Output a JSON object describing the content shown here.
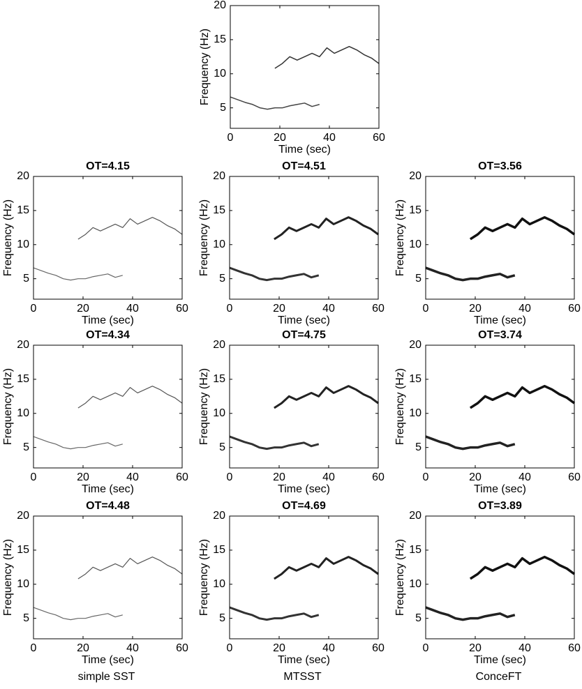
{
  "chart_data": [
    {
      "type": "line",
      "xlim": [
        0,
        60
      ],
      "ylim": [
        2,
        20
      ],
      "xticks": [
        0,
        20,
        40,
        60
      ],
      "yticks": [
        5,
        10,
        15,
        20
      ],
      "xlabel": "Time (sec)",
      "ylabel": "Frequency (Hz)",
      "series": [
        {
          "color": "#444444",
          "x": [
            0,
            3,
            6,
            9,
            12,
            15,
            18,
            21,
            24,
            27,
            30,
            33,
            36
          ],
          "values": [
            6.6,
            6.2,
            5.8,
            5.5,
            5.0,
            4.8,
            5.0,
            5.0,
            5.3,
            5.5,
            5.7,
            5.2,
            5.5
          ]
        },
        {
          "color": "#333333",
          "x": [
            18,
            21,
            24,
            27,
            30,
            33,
            36,
            39,
            42,
            45,
            48,
            51,
            54,
            57,
            60
          ],
          "values": [
            10.8,
            11.5,
            12.5,
            12.0,
            12.5,
            13.0,
            12.5,
            13.8,
            13.0,
            13.5,
            14.0,
            13.5,
            12.8,
            12.3,
            11.5
          ]
        }
      ]
    },
    {
      "type": "line",
      "title": "OT=4.15",
      "xlim": [
        0,
        60
      ],
      "ylim": [
        2,
        20
      ],
      "xticks": [
        0,
        20,
        40,
        60
      ],
      "yticks": [
        5,
        10,
        15,
        20
      ],
      "xlabel": "Time (sec)",
      "ylabel": "Frequency (Hz)",
      "series": [
        {
          "color": "#666666",
          "x": [
            0,
            3,
            6,
            9,
            12,
            15,
            18,
            21,
            24,
            27,
            30,
            33,
            36
          ],
          "values": [
            6.6,
            6.2,
            5.8,
            5.5,
            5.0,
            4.8,
            5.0,
            5.0,
            5.3,
            5.5,
            5.7,
            5.2,
            5.5
          ]
        },
        {
          "color": "#555555",
          "x": [
            18,
            21,
            24,
            27,
            30,
            33,
            36,
            39,
            42,
            45,
            48,
            51,
            54,
            57,
            60
          ],
          "values": [
            10.8,
            11.5,
            12.5,
            12.0,
            12.5,
            13.0,
            12.5,
            13.8,
            13.0,
            13.5,
            14.0,
            13.5,
            12.8,
            12.3,
            11.5
          ]
        }
      ]
    },
    {
      "type": "line",
      "title": "OT=4.51",
      "xlim": [
        0,
        60
      ],
      "ylim": [
        2,
        20
      ],
      "xticks": [
        0,
        20,
        40,
        60
      ],
      "yticks": [
        5,
        10,
        15,
        20
      ],
      "xlabel": "Time (sec)",
      "ylabel": "Frequency (Hz)",
      "series": [
        {
          "color": "#333333",
          "x": [
            0,
            3,
            6,
            9,
            12,
            15,
            18,
            21,
            24,
            27,
            30,
            33,
            36
          ],
          "values": [
            6.6,
            6.2,
            5.8,
            5.5,
            5.0,
            4.8,
            5.0,
            5.0,
            5.3,
            5.5,
            5.7,
            5.2,
            5.5
          ]
        },
        {
          "color": "#222222",
          "x": [
            18,
            21,
            24,
            27,
            30,
            33,
            36,
            39,
            42,
            45,
            48,
            51,
            54,
            57,
            60
          ],
          "values": [
            10.8,
            11.5,
            12.5,
            12.0,
            12.5,
            13.0,
            12.5,
            13.8,
            13.0,
            13.5,
            14.0,
            13.5,
            12.8,
            12.3,
            11.5
          ]
        }
      ]
    },
    {
      "type": "line",
      "title": "OT=3.56",
      "xlim": [
        0,
        60
      ],
      "ylim": [
        2,
        20
      ],
      "xticks": [
        0,
        20,
        40,
        60
      ],
      "yticks": [
        5,
        10,
        15,
        20
      ],
      "xlabel": "Time (sec)",
      "ylabel": "Frequency (Hz)",
      "series": [
        {
          "color": "#222222",
          "x": [
            0,
            3,
            6,
            9,
            12,
            15,
            18,
            21,
            24,
            27,
            30,
            33,
            36
          ],
          "values": [
            6.6,
            6.2,
            5.8,
            5.5,
            5.0,
            4.8,
            5.0,
            5.0,
            5.3,
            5.5,
            5.7,
            5.2,
            5.5
          ]
        },
        {
          "color": "#111111",
          "x": [
            18,
            21,
            24,
            27,
            30,
            33,
            36,
            39,
            42,
            45,
            48,
            51,
            54,
            57,
            60
          ],
          "values": [
            10.8,
            11.5,
            12.5,
            12.0,
            12.5,
            13.0,
            12.5,
            13.8,
            13.0,
            13.5,
            14.0,
            13.5,
            12.8,
            12.3,
            11.5
          ]
        }
      ]
    },
    {
      "type": "line",
      "title": "OT=4.34",
      "xlim": [
        0,
        60
      ],
      "ylim": [
        2,
        20
      ],
      "xticks": [
        0,
        20,
        40,
        60
      ],
      "yticks": [
        5,
        10,
        15,
        20
      ],
      "xlabel": "Time (sec)",
      "ylabel": "Frequency (Hz)",
      "series": [
        {
          "color": "#666666",
          "x": [
            0,
            3,
            6,
            9,
            12,
            15,
            18,
            21,
            24,
            27,
            30,
            33,
            36
          ],
          "values": [
            6.6,
            6.2,
            5.8,
            5.5,
            5.0,
            4.8,
            5.0,
            5.0,
            5.3,
            5.5,
            5.7,
            5.2,
            5.5
          ]
        },
        {
          "color": "#555555",
          "x": [
            18,
            21,
            24,
            27,
            30,
            33,
            36,
            39,
            42,
            45,
            48,
            51,
            54,
            57,
            60
          ],
          "values": [
            10.8,
            11.5,
            12.5,
            12.0,
            12.5,
            13.0,
            12.5,
            13.8,
            13.0,
            13.5,
            14.0,
            13.5,
            12.8,
            12.3,
            11.5
          ]
        }
      ]
    },
    {
      "type": "line",
      "title": "OT=4.75",
      "xlim": [
        0,
        60
      ],
      "ylim": [
        2,
        20
      ],
      "xticks": [
        0,
        20,
        40,
        60
      ],
      "yticks": [
        5,
        10,
        15,
        20
      ],
      "xlabel": "Time (sec)",
      "ylabel": "Frequency (Hz)",
      "series": [
        {
          "color": "#333333",
          "x": [
            0,
            3,
            6,
            9,
            12,
            15,
            18,
            21,
            24,
            27,
            30,
            33,
            36
          ],
          "values": [
            6.6,
            6.2,
            5.8,
            5.5,
            5.0,
            4.8,
            5.0,
            5.0,
            5.3,
            5.5,
            5.7,
            5.2,
            5.5
          ]
        },
        {
          "color": "#222222",
          "x": [
            18,
            21,
            24,
            27,
            30,
            33,
            36,
            39,
            42,
            45,
            48,
            51,
            54,
            57,
            60
          ],
          "values": [
            10.8,
            11.5,
            12.5,
            12.0,
            12.5,
            13.0,
            12.5,
            13.8,
            13.0,
            13.5,
            14.0,
            13.5,
            12.8,
            12.3,
            11.5
          ]
        }
      ]
    },
    {
      "type": "line",
      "title": "OT=3.74",
      "xlim": [
        0,
        60
      ],
      "ylim": [
        2,
        20
      ],
      "xticks": [
        0,
        20,
        40,
        60
      ],
      "yticks": [
        5,
        10,
        15,
        20
      ],
      "xlabel": "Time (sec)",
      "ylabel": "Frequency (Hz)",
      "series": [
        {
          "color": "#222222",
          "x": [
            0,
            3,
            6,
            9,
            12,
            15,
            18,
            21,
            24,
            27,
            30,
            33,
            36
          ],
          "values": [
            6.6,
            6.2,
            5.8,
            5.5,
            5.0,
            4.8,
            5.0,
            5.0,
            5.3,
            5.5,
            5.7,
            5.2,
            5.5
          ]
        },
        {
          "color": "#111111",
          "x": [
            18,
            21,
            24,
            27,
            30,
            33,
            36,
            39,
            42,
            45,
            48,
            51,
            54,
            57,
            60
          ],
          "values": [
            10.8,
            11.5,
            12.5,
            12.0,
            12.5,
            13.0,
            12.5,
            13.8,
            13.0,
            13.5,
            14.0,
            13.5,
            12.8,
            12.3,
            11.5
          ]
        }
      ]
    },
    {
      "type": "line",
      "title": "OT=4.48",
      "xlim": [
        0,
        60
      ],
      "ylim": [
        2,
        20
      ],
      "xticks": [
        0,
        20,
        40,
        60
      ],
      "yticks": [
        5,
        10,
        15,
        20
      ],
      "xlabel": "Time (sec)",
      "ylabel": "Frequency (Hz)",
      "series": [
        {
          "color": "#666666",
          "x": [
            0,
            3,
            6,
            9,
            12,
            15,
            18,
            21,
            24,
            27,
            30,
            33,
            36
          ],
          "values": [
            6.6,
            6.2,
            5.8,
            5.5,
            5.0,
            4.8,
            5.0,
            5.0,
            5.3,
            5.5,
            5.7,
            5.2,
            5.5
          ]
        },
        {
          "color": "#555555",
          "x": [
            18,
            21,
            24,
            27,
            30,
            33,
            36,
            39,
            42,
            45,
            48,
            51,
            54,
            57,
            60
          ],
          "values": [
            10.8,
            11.5,
            12.5,
            12.0,
            12.5,
            13.0,
            12.5,
            13.8,
            13.0,
            13.5,
            14.0,
            13.5,
            12.8,
            12.3,
            11.5
          ]
        }
      ]
    },
    {
      "type": "line",
      "title": "OT=4.69",
      "xlim": [
        0,
        60
      ],
      "ylim": [
        2,
        20
      ],
      "xticks": [
        0,
        20,
        40,
        60
      ],
      "yticks": [
        5,
        10,
        15,
        20
      ],
      "xlabel": "Time (sec)",
      "ylabel": "Frequency (Hz)",
      "series": [
        {
          "color": "#333333",
          "x": [
            0,
            3,
            6,
            9,
            12,
            15,
            18,
            21,
            24,
            27,
            30,
            33,
            36
          ],
          "values": [
            6.6,
            6.2,
            5.8,
            5.5,
            5.0,
            4.8,
            5.0,
            5.0,
            5.3,
            5.5,
            5.7,
            5.2,
            5.5
          ]
        },
        {
          "color": "#222222",
          "x": [
            18,
            21,
            24,
            27,
            30,
            33,
            36,
            39,
            42,
            45,
            48,
            51,
            54,
            57,
            60
          ],
          "values": [
            10.8,
            11.5,
            12.5,
            12.0,
            12.5,
            13.0,
            12.5,
            13.8,
            13.0,
            13.5,
            14.0,
            13.5,
            12.8,
            12.3,
            11.5
          ]
        }
      ]
    },
    {
      "type": "line",
      "title": "OT=3.89",
      "xlim": [
        0,
        60
      ],
      "ylim": [
        2,
        20
      ],
      "xticks": [
        0,
        20,
        40,
        60
      ],
      "yticks": [
        5,
        10,
        15,
        20
      ],
      "xlabel": "Time (sec)",
      "ylabel": "Frequency (Hz)",
      "series": [
        {
          "color": "#222222",
          "x": [
            0,
            3,
            6,
            9,
            12,
            15,
            18,
            21,
            24,
            27,
            30,
            33,
            36
          ],
          "values": [
            6.6,
            6.2,
            5.8,
            5.5,
            5.0,
            4.8,
            5.0,
            5.0,
            5.3,
            5.5,
            5.7,
            5.2,
            5.5
          ]
        },
        {
          "color": "#111111",
          "x": [
            18,
            21,
            24,
            27,
            30,
            33,
            36,
            39,
            42,
            45,
            48,
            51,
            54,
            57,
            60
          ],
          "values": [
            10.8,
            11.5,
            12.5,
            12.0,
            12.5,
            13.0,
            12.5,
            13.8,
            13.0,
            13.5,
            14.0,
            13.5,
            12.8,
            12.3,
            11.5
          ]
        }
      ]
    }
  ],
  "column_labels": [
    "simple SST",
    "MTSST",
    "ConceFT"
  ]
}
